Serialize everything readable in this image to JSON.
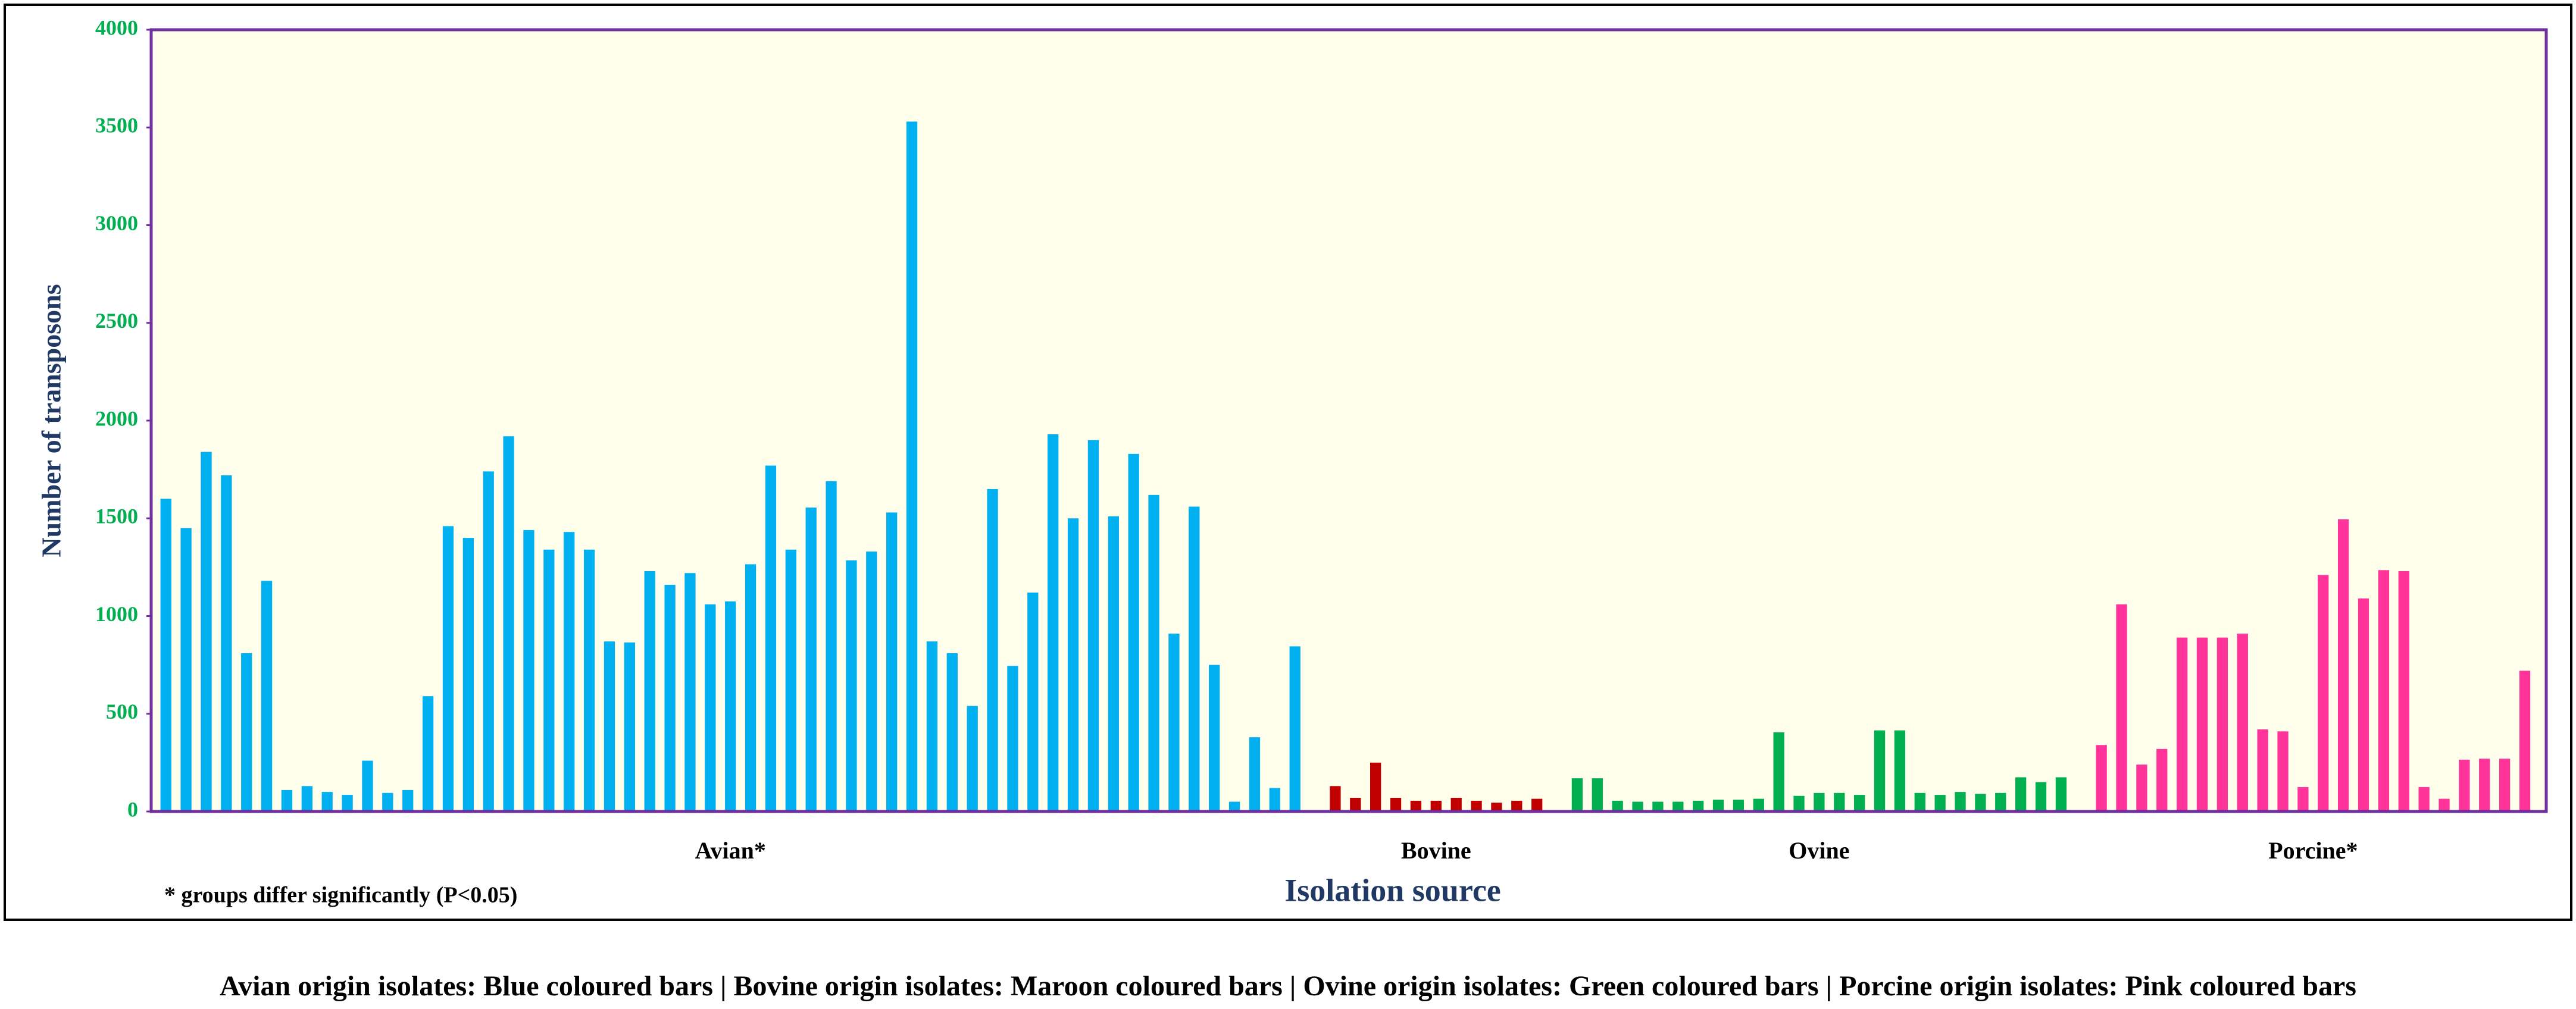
{
  "chart_data": {
    "type": "bar",
    "ylabel": "Number of transposons",
    "xlabel": "Isolation source",
    "note": "* groups differ significantly (P<0.05)",
    "caption": "Avian origin isolates: Blue coloured bars | Bovine origin isolates: Maroon coloured bars | Ovine origin isolates: Green coloured bars | Porcine origin isolates: Pink coloured bars",
    "ylim": [
      0,
      4000
    ],
    "yticks": [
      0,
      500,
      1000,
      1500,
      2000,
      2500,
      3000,
      3500,
      4000
    ],
    "series": [
      {
        "name": "Avian*",
        "color": "#00b0f0",
        "values": [
          1600,
          1450,
          1840,
          1720,
          810,
          1180,
          110,
          130,
          100,
          85,
          260,
          95,
          110,
          590,
          1460,
          1400,
          1740,
          1920,
          1440,
          1340,
          1430,
          1340,
          870,
          865,
          1230,
          1160,
          1220,
          1060,
          1075,
          1265,
          1770,
          1340,
          1555,
          1690,
          1285,
          1330,
          1530,
          3530,
          870,
          810,
          540,
          1650,
          745,
          1120,
          1930,
          1500,
          1900,
          1510,
          1830,
          1620,
          910,
          1560,
          750,
          50,
          380,
          120,
          845
        ]
      },
      {
        "name": "Bovine",
        "color": "#c00000",
        "values": [
          130,
          70,
          250,
          70,
          55,
          55,
          70,
          55,
          45,
          55,
          65
        ]
      },
      {
        "name": "Ovine",
        "color": "#00b050",
        "values": [
          170,
          170,
          55,
          50,
          50,
          50,
          55,
          60,
          60,
          65,
          405,
          80,
          95,
          95,
          85,
          415,
          415,
          95,
          85,
          100,
          90,
          95,
          175,
          150,
          175
        ]
      },
      {
        "name": "Porcine*",
        "color": "#ff3399",
        "values": [
          340,
          1060,
          240,
          320,
          890,
          890,
          890,
          910,
          420,
          410,
          125,
          1210,
          1495,
          1090,
          1235,
          1230,
          125,
          65,
          265,
          270,
          270,
          720
        ]
      }
    ]
  }
}
